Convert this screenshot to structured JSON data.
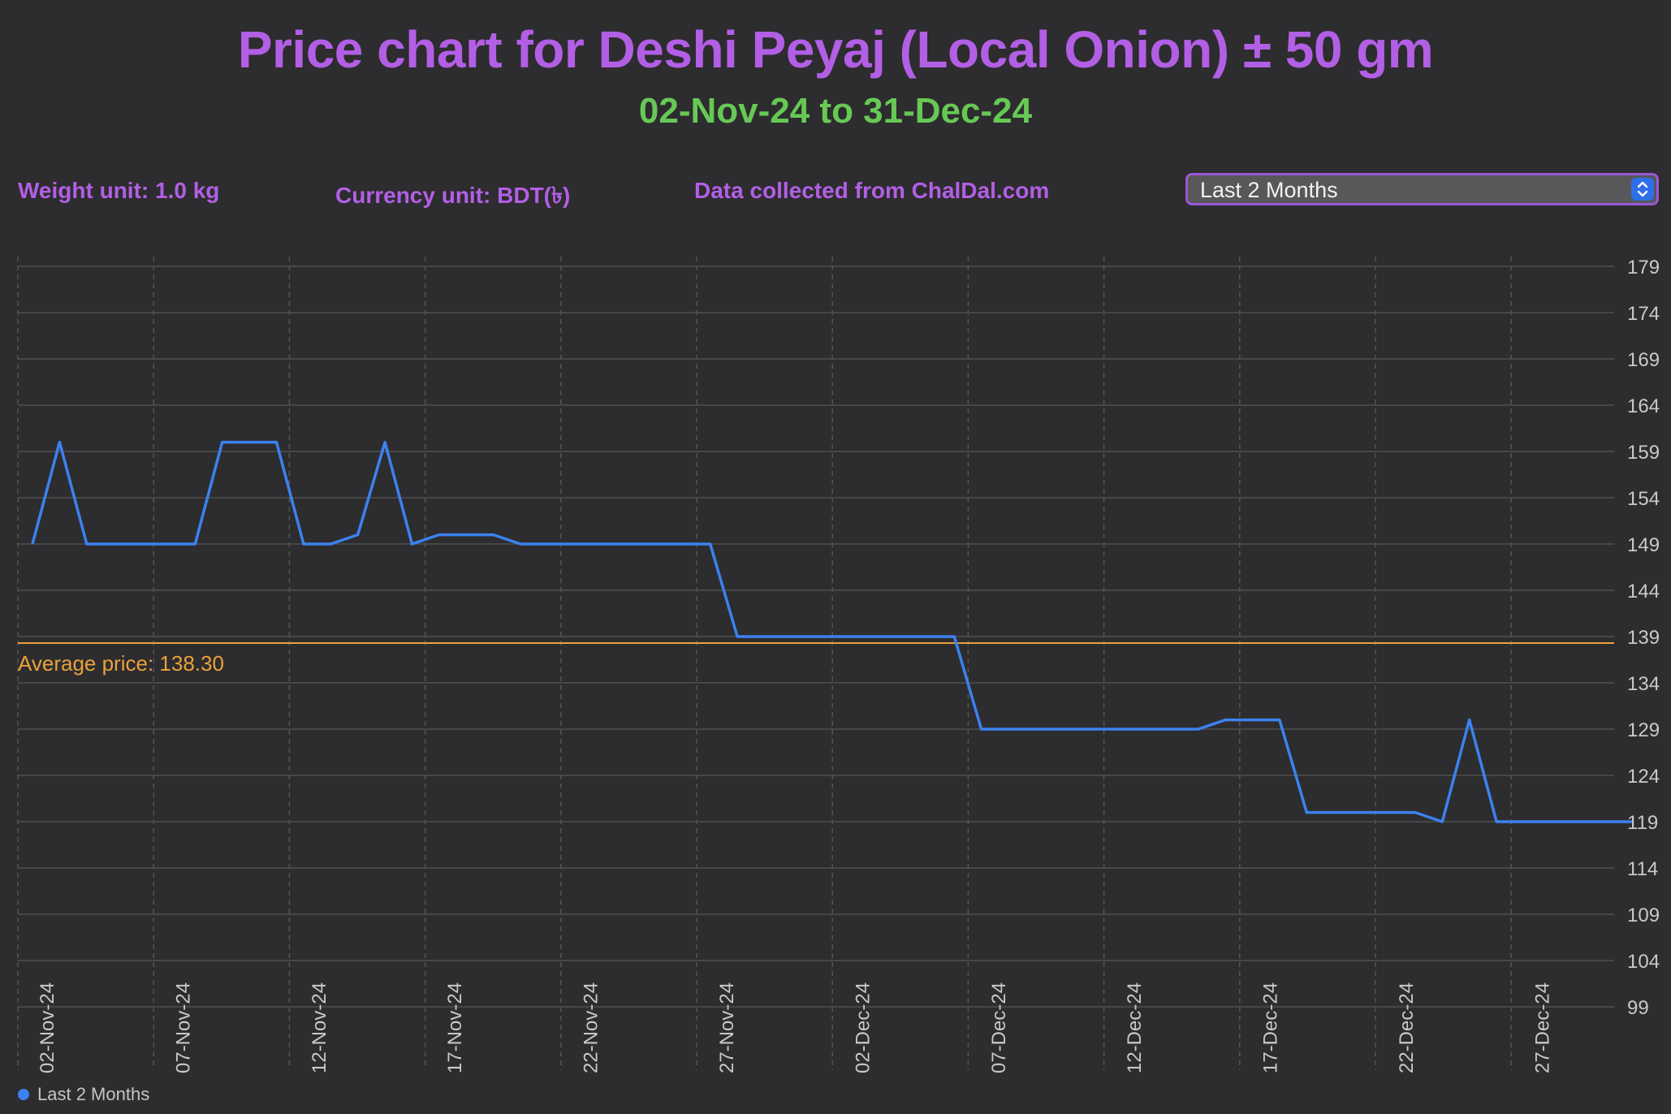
{
  "header": {
    "title": "Price chart for Deshi Peyaj (Local Onion) ± 50 gm",
    "subtitle": "02-Nov-24 to 31-Dec-24"
  },
  "info": {
    "weight_unit": "Weight unit: 1.0 kg",
    "currency_unit": "Currency unit: BDT(৳)",
    "source": "Data collected from ChalDal.com"
  },
  "period_select": {
    "selected": "Last 2 Months",
    "icon": "chevron-updown-icon"
  },
  "colors": {
    "title": "#b25fe6",
    "subtitle": "#67c955",
    "series": "#3b82f0",
    "average": "#e9a23b",
    "background": "#2d2c2e"
  },
  "chart_data": {
    "type": "line",
    "title": "Price chart for Deshi Peyaj (Local Onion) ± 50 gm",
    "subtitle": "02-Nov-24 to 31-Dec-24",
    "xlabel": "",
    "ylabel": "",
    "x_start": "2024-11-02",
    "x_end": "2024-12-31",
    "ylim": [
      99,
      179
    ],
    "y_ticks": [
      179,
      174,
      169,
      164,
      159,
      154,
      149,
      144,
      139,
      134,
      129,
      124,
      119,
      114,
      109,
      104,
      99
    ],
    "x_ticks": [
      "02-Nov-24",
      "07-Nov-24",
      "12-Nov-24",
      "17-Nov-24",
      "22-Nov-24",
      "27-Nov-24",
      "02-Dec-24",
      "07-Dec-24",
      "12-Dec-24",
      "17-Dec-24",
      "22-Dec-24",
      "27-Dec-24"
    ],
    "grid": true,
    "legend": "bottom-left",
    "average": {
      "value": 138.3,
      "label": "Average price: 138.30"
    },
    "series": [
      {
        "name": "Last 2 Months",
        "x": [
          "2024-11-02",
          "2024-11-03",
          "2024-11-04",
          "2024-11-05",
          "2024-11-06",
          "2024-11-07",
          "2024-11-08",
          "2024-11-09",
          "2024-11-10",
          "2024-11-11",
          "2024-11-12",
          "2024-11-13",
          "2024-11-14",
          "2024-11-15",
          "2024-11-16",
          "2024-11-17",
          "2024-11-18",
          "2024-11-19",
          "2024-11-20",
          "2024-11-21",
          "2024-11-22",
          "2024-11-23",
          "2024-11-24",
          "2024-11-25",
          "2024-11-26",
          "2024-11-27",
          "2024-11-28",
          "2024-11-29",
          "2024-11-30",
          "2024-12-01",
          "2024-12-02",
          "2024-12-03",
          "2024-12-04",
          "2024-12-05",
          "2024-12-06",
          "2024-12-07",
          "2024-12-08",
          "2024-12-09",
          "2024-12-10",
          "2024-12-11",
          "2024-12-12",
          "2024-12-13",
          "2024-12-14",
          "2024-12-15",
          "2024-12-16",
          "2024-12-17",
          "2024-12-18",
          "2024-12-19",
          "2024-12-20",
          "2024-12-21",
          "2024-12-22",
          "2024-12-23",
          "2024-12-24",
          "2024-12-25",
          "2024-12-26",
          "2024-12-27",
          "2024-12-28",
          "2024-12-29",
          "2024-12-30",
          "2024-12-31"
        ],
        "values": [
          149,
          160,
          149,
          149,
          149,
          149,
          149,
          160,
          160,
          160,
          149,
          149,
          150,
          160,
          149,
          150,
          150,
          150,
          149,
          149,
          149,
          149,
          149,
          149,
          149,
          149,
          139,
          139,
          139,
          139,
          139,
          139,
          139,
          139,
          139,
          129,
          129,
          129,
          129,
          129,
          129,
          129,
          129,
          129,
          130,
          130,
          130,
          120,
          120,
          120,
          120,
          120,
          119,
          130,
          119,
          119,
          119,
          119,
          119,
          119
        ]
      }
    ]
  }
}
